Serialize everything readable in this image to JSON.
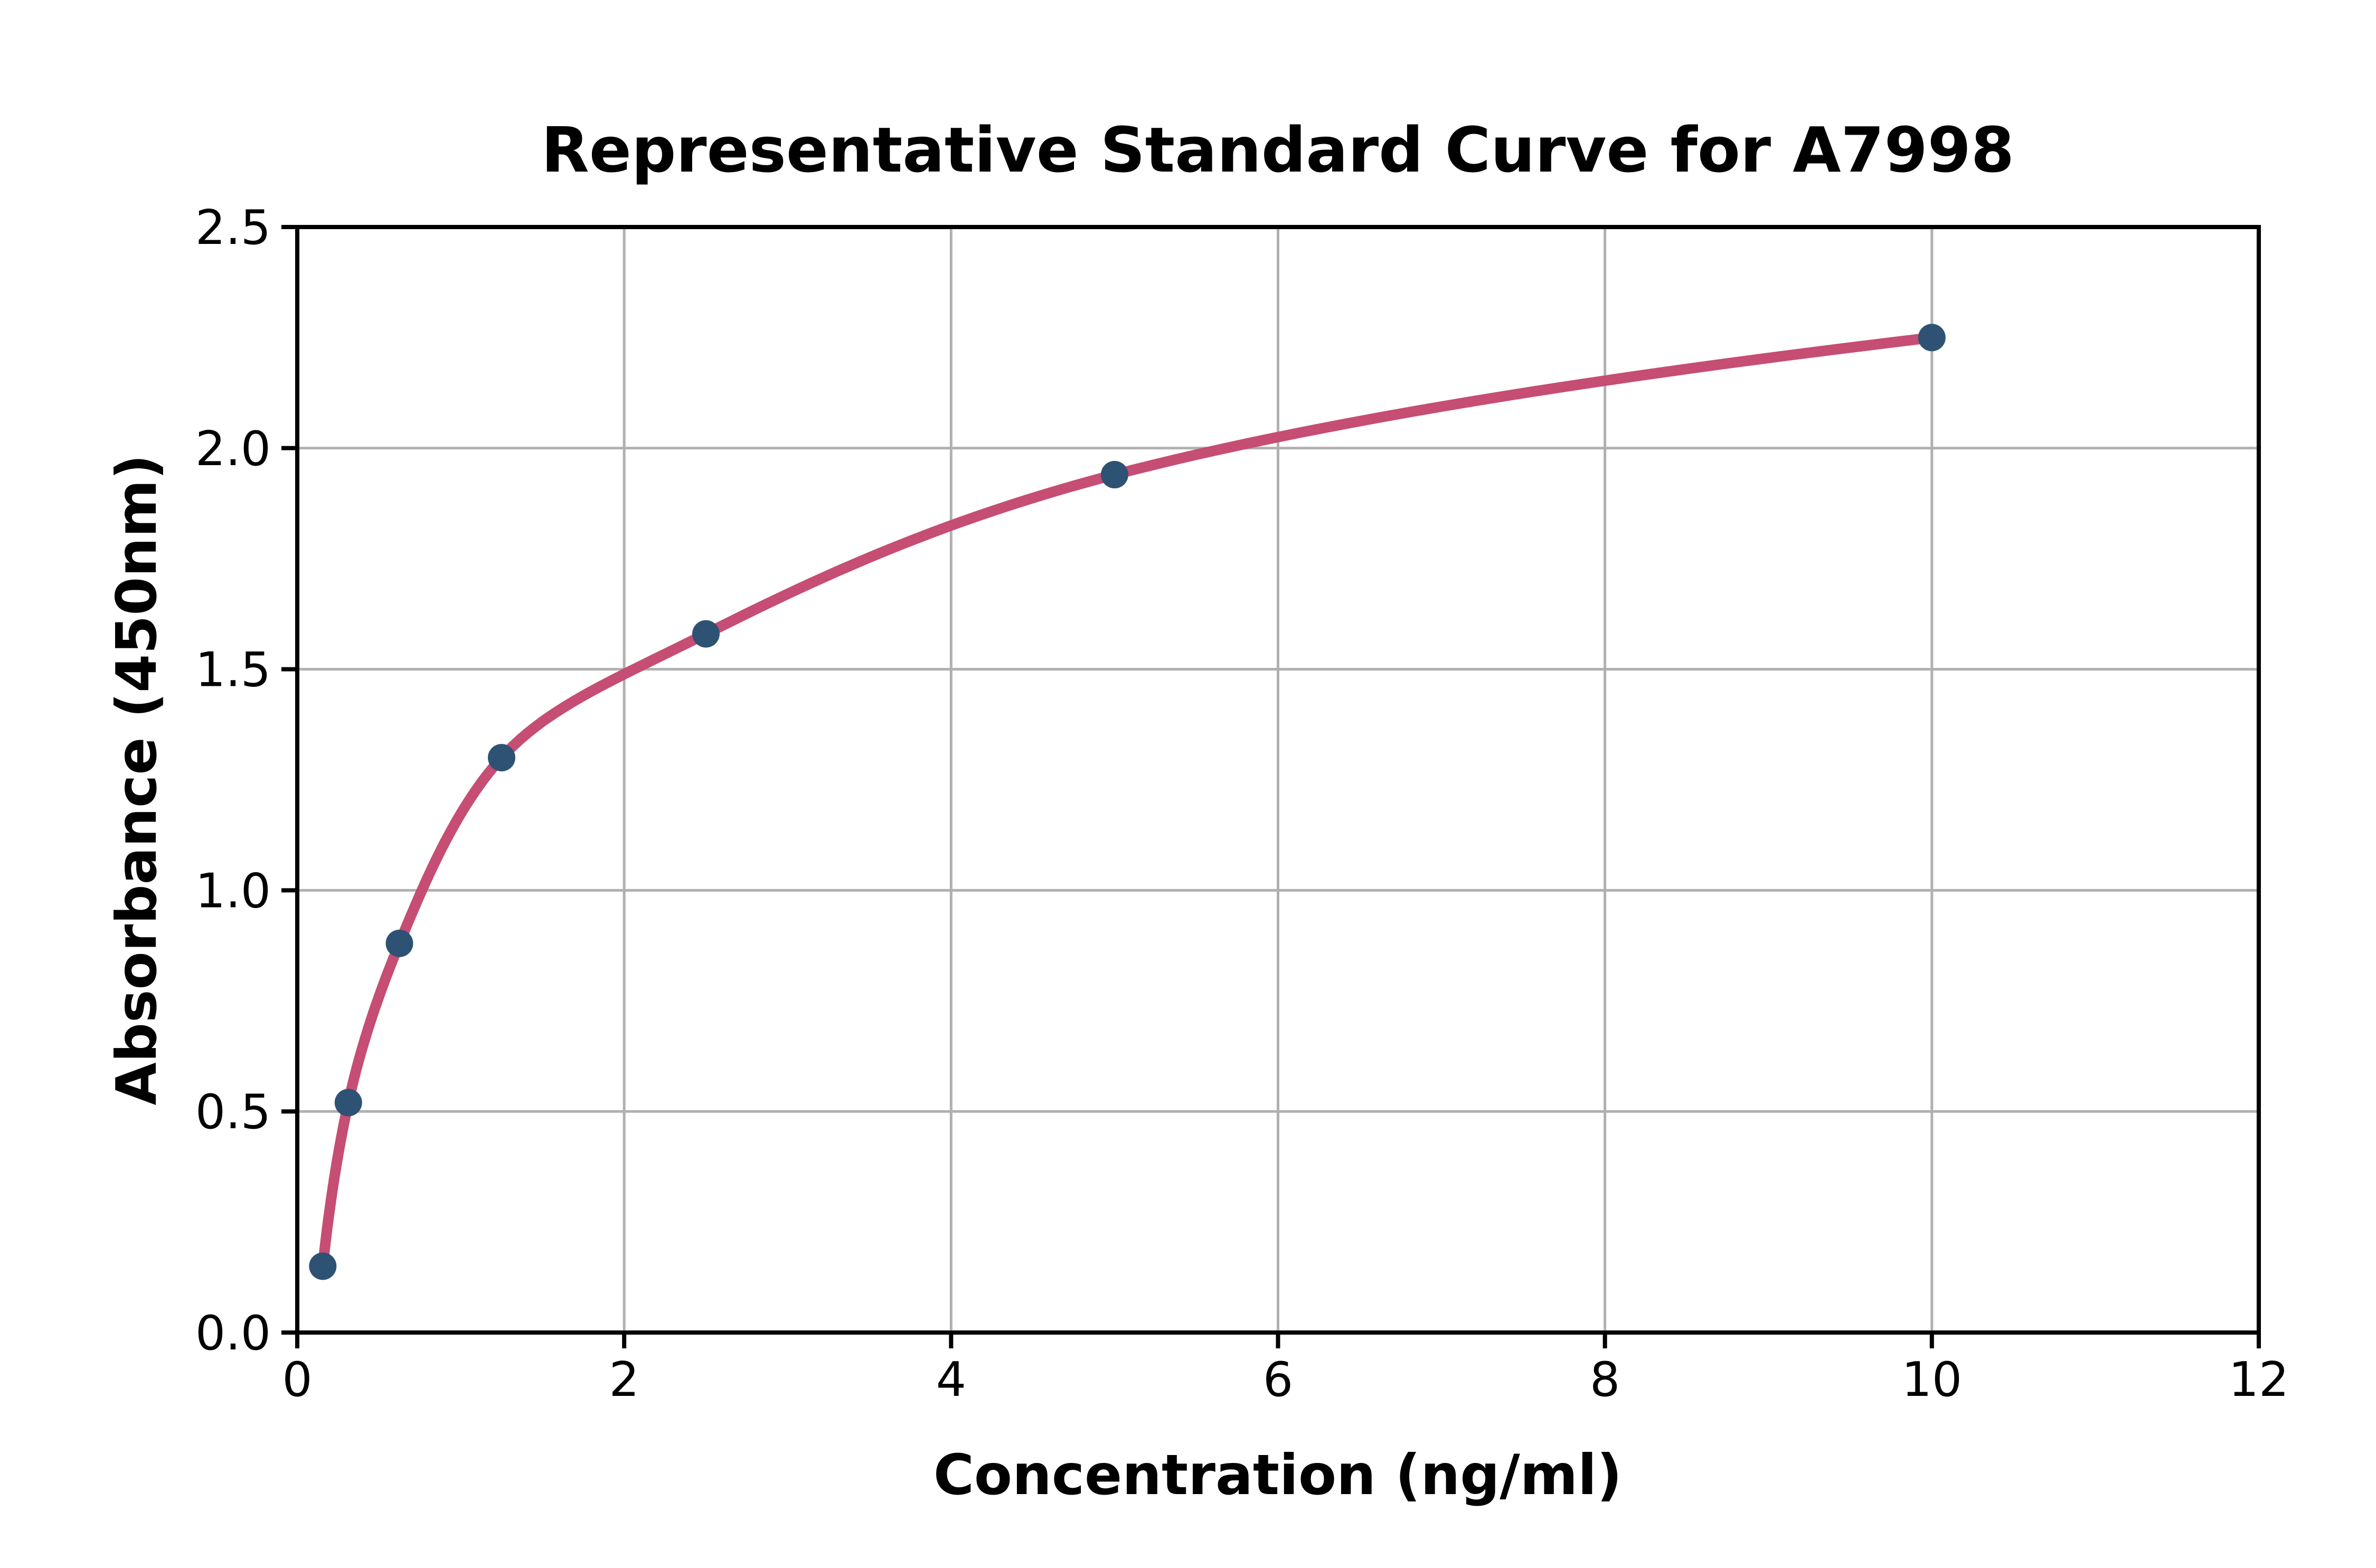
{
  "chart_data": {
    "type": "scatter",
    "title": "Representative Standard Curve for A7998",
    "xlabel": "Concentration (ng/ml)",
    "ylabel": "Absorbance (450nm)",
    "x": [
      0.156,
      0.3125,
      0.625,
      1.25,
      2.5,
      5,
      10
    ],
    "y": [
      0.15,
      0.52,
      0.88,
      1.3,
      1.58,
      1.94,
      2.25
    ],
    "series": [
      {
        "name": "standard-points",
        "kind": "markers"
      },
      {
        "name": "fitted-curve",
        "kind": "smooth-line"
      }
    ],
    "xlim": [
      0,
      12
    ],
    "ylim": [
      0,
      2.5
    ],
    "xticks": [
      0,
      2,
      4,
      6,
      8,
      10,
      12
    ],
    "xtick_labels": [
      "0",
      "2",
      "4",
      "6",
      "8",
      "10",
      "12"
    ],
    "yticks": [
      0,
      0.5,
      1.0,
      1.5,
      2.0,
      2.5
    ],
    "ytick_labels": [
      "0.0",
      "0.5",
      "1.0",
      "1.5",
      "2.0",
      "2.5"
    ],
    "grid": true,
    "legend": "none",
    "colors": {
      "curve": "#C64D73",
      "marker": "#2E5273",
      "grid": "#B0B0B0",
      "axis": "#000000",
      "background": "#FFFFFF"
    }
  }
}
